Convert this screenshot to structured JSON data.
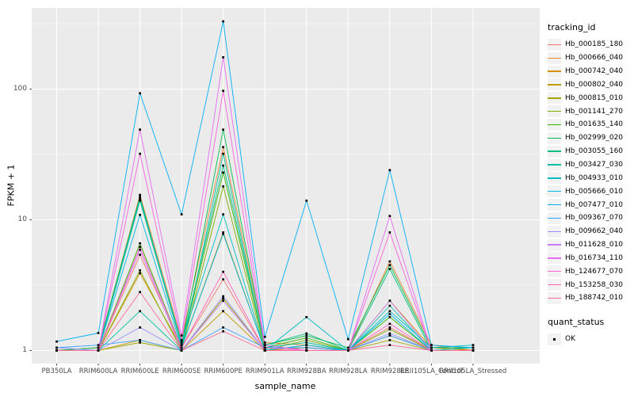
{
  "figure": {
    "background": "#FFFFFF",
    "panel_background": "#EBEBEB",
    "gridline_color": "#FFFFFF",
    "axis_text_color": "#4D4D4D",
    "tick_mark_color": "#333333",
    "point_color": "#000000"
  },
  "chart_data": {
    "type": "line",
    "title": "",
    "xlabel": "sample_name",
    "ylabel": "FPKM + 1",
    "y_scale": "log10",
    "ylim": [
      0.79,
      420
    ],
    "grid": "on",
    "legend_position": "right",
    "y_ticks": [
      {
        "value": 1,
        "label": "1"
      },
      {
        "value": 10,
        "label": "10"
      },
      {
        "value": 100,
        "label": "100"
      }
    ],
    "y_minor_gridlines": [
      3.162,
      31.623,
      316.228
    ],
    "categories": [
      "PB350LA",
      "RRIM600LA",
      "RRIM600LE",
      "RRIM600SE",
      "RRIM600PE",
      "RRIM901LA",
      "RRIM928BA",
      "RRIM928LA",
      "RRIM928LE",
      "RRII105LA_Control",
      "RRII105LA_Stressed"
    ],
    "legend": {
      "title": "tracking_id"
    },
    "legend2": {
      "title": "quant_status",
      "items": [
        "OK"
      ]
    },
    "series": [
      {
        "name": "Hb_000185_180",
        "color": "#F8766D",
        "values": [
          1.0,
          1.0,
          5.4,
          1.05,
          3.5,
          1.0,
          1.05,
          1.0,
          1.5,
          1.0,
          1.0
        ]
      },
      {
        "name": "Hb_000666_040",
        "color": "#EA8331",
        "values": [
          1.0,
          1.05,
          15.5,
          1.2,
          36,
          1.15,
          1.1,
          1.0,
          4.8,
          1.1,
          1.0
        ]
      },
      {
        "name": "Hb_000742_040",
        "color": "#D89000",
        "values": [
          1.0,
          1.0,
          3.9,
          1.05,
          8.0,
          1.0,
          1.05,
          1.0,
          2.4,
          1.05,
          1.0
        ]
      },
      {
        "name": "Hb_000802_040",
        "color": "#C09B00",
        "values": [
          1.0,
          1.0,
          1.2,
          1.0,
          2.0,
          1.0,
          1.0,
          1.0,
          1.3,
          1.0,
          1.0
        ]
      },
      {
        "name": "Hb_000815_010",
        "color": "#A3A500",
        "values": [
          1.0,
          1.0,
          1.15,
          1.0,
          2.5,
          1.0,
          1.1,
          1.0,
          1.2,
          1.0,
          1.0
        ]
      },
      {
        "name": "Hb_001141_270",
        "color": "#7CAE00",
        "values": [
          1.0,
          1.0,
          4.1,
          1.0,
          18,
          1.0,
          1.2,
          1.0,
          1.45,
          1.0,
          1.0
        ]
      },
      {
        "name": "Hb_001635_140",
        "color": "#39B600",
        "values": [
          1.0,
          1.0,
          6.6,
          1.05,
          23,
          1.05,
          1.25,
          1.0,
          1.8,
          1.0,
          1.0
        ]
      },
      {
        "name": "Hb_002999_020",
        "color": "#00BB4E",
        "values": [
          1.0,
          1.05,
          15.0,
          1.1,
          49,
          1.1,
          1.3,
          1.05,
          4.5,
          1.05,
          1.05
        ]
      },
      {
        "name": "Hb_003055_160",
        "color": "#00BF7D",
        "values": [
          1.0,
          1.0,
          14.0,
          1.1,
          26,
          1.1,
          1.35,
          1.0,
          4.2,
          1.0,
          1.0
        ]
      },
      {
        "name": "Hb_003427_030",
        "color": "#00C1A3",
        "values": [
          1.0,
          1.0,
          2.0,
          1.0,
          32,
          1.05,
          1.15,
          1.0,
          2.2,
          1.0,
          1.05
        ]
      },
      {
        "name": "Hb_004933_010",
        "color": "#00BFC4",
        "values": [
          1.0,
          1.0,
          14.5,
          1.15,
          11,
          1.0,
          1.8,
          1.0,
          2.0,
          1.05,
          1.1
        ]
      },
      {
        "name": "Hb_005666_010",
        "color": "#00BAE0",
        "values": [
          1.0,
          1.0,
          10.9,
          1.05,
          7.8,
          1.0,
          1.1,
          1.0,
          1.9,
          1.0,
          1.0
        ]
      },
      {
        "name": "Hb_007477_010",
        "color": "#00B0F6",
        "values": [
          1.17,
          1.36,
          93,
          11,
          330,
          1.27,
          14,
          1.22,
          24,
          1.1,
          1.05
        ]
      },
      {
        "name": "Hb_009367_070",
        "color": "#35A2FF",
        "values": [
          1.05,
          1.1,
          1.2,
          1.0,
          1.5,
          1.05,
          1.05,
          1.0,
          1.3,
          1.0,
          1.0
        ]
      },
      {
        "name": "Hb_009662_040",
        "color": "#9590FF",
        "values": [
          1.05,
          1.0,
          1.5,
          1.0,
          2.6,
          1.0,
          1.0,
          1.0,
          1.35,
          1.0,
          1.0
        ]
      },
      {
        "name": "Hb_011628_010",
        "color": "#C77CFF",
        "values": [
          1.0,
          1.0,
          5.9,
          1.0,
          2.4,
          1.0,
          1.0,
          1.0,
          2.4,
          1.0,
          1.0
        ]
      },
      {
        "name": "Hb_016734_110",
        "color": "#E76BF3",
        "values": [
          1.0,
          1.0,
          49,
          1.3,
          175,
          1.1,
          1.0,
          1.0,
          10.7,
          1.0,
          1.0
        ]
      },
      {
        "name": "Hb_124677_070",
        "color": "#FA62DB",
        "values": [
          1.0,
          1.0,
          32,
          1.2,
          97,
          1.05,
          1.0,
          1.0,
          8.0,
          1.0,
          1.0
        ]
      },
      {
        "name": "Hb_153258_030",
        "color": "#FF62BC",
        "values": [
          1.0,
          1.0,
          6.2,
          1.05,
          4.0,
          1.0,
          1.0,
          1.0,
          1.6,
          1.0,
          1.0
        ]
      },
      {
        "name": "Hb_188742_010",
        "color": "#FF6A98",
        "values": [
          1.0,
          1.0,
          2.8,
          1.0,
          1.4,
          1.0,
          1.0,
          1.0,
          1.1,
          1.0,
          1.0
        ]
      }
    ]
  }
}
